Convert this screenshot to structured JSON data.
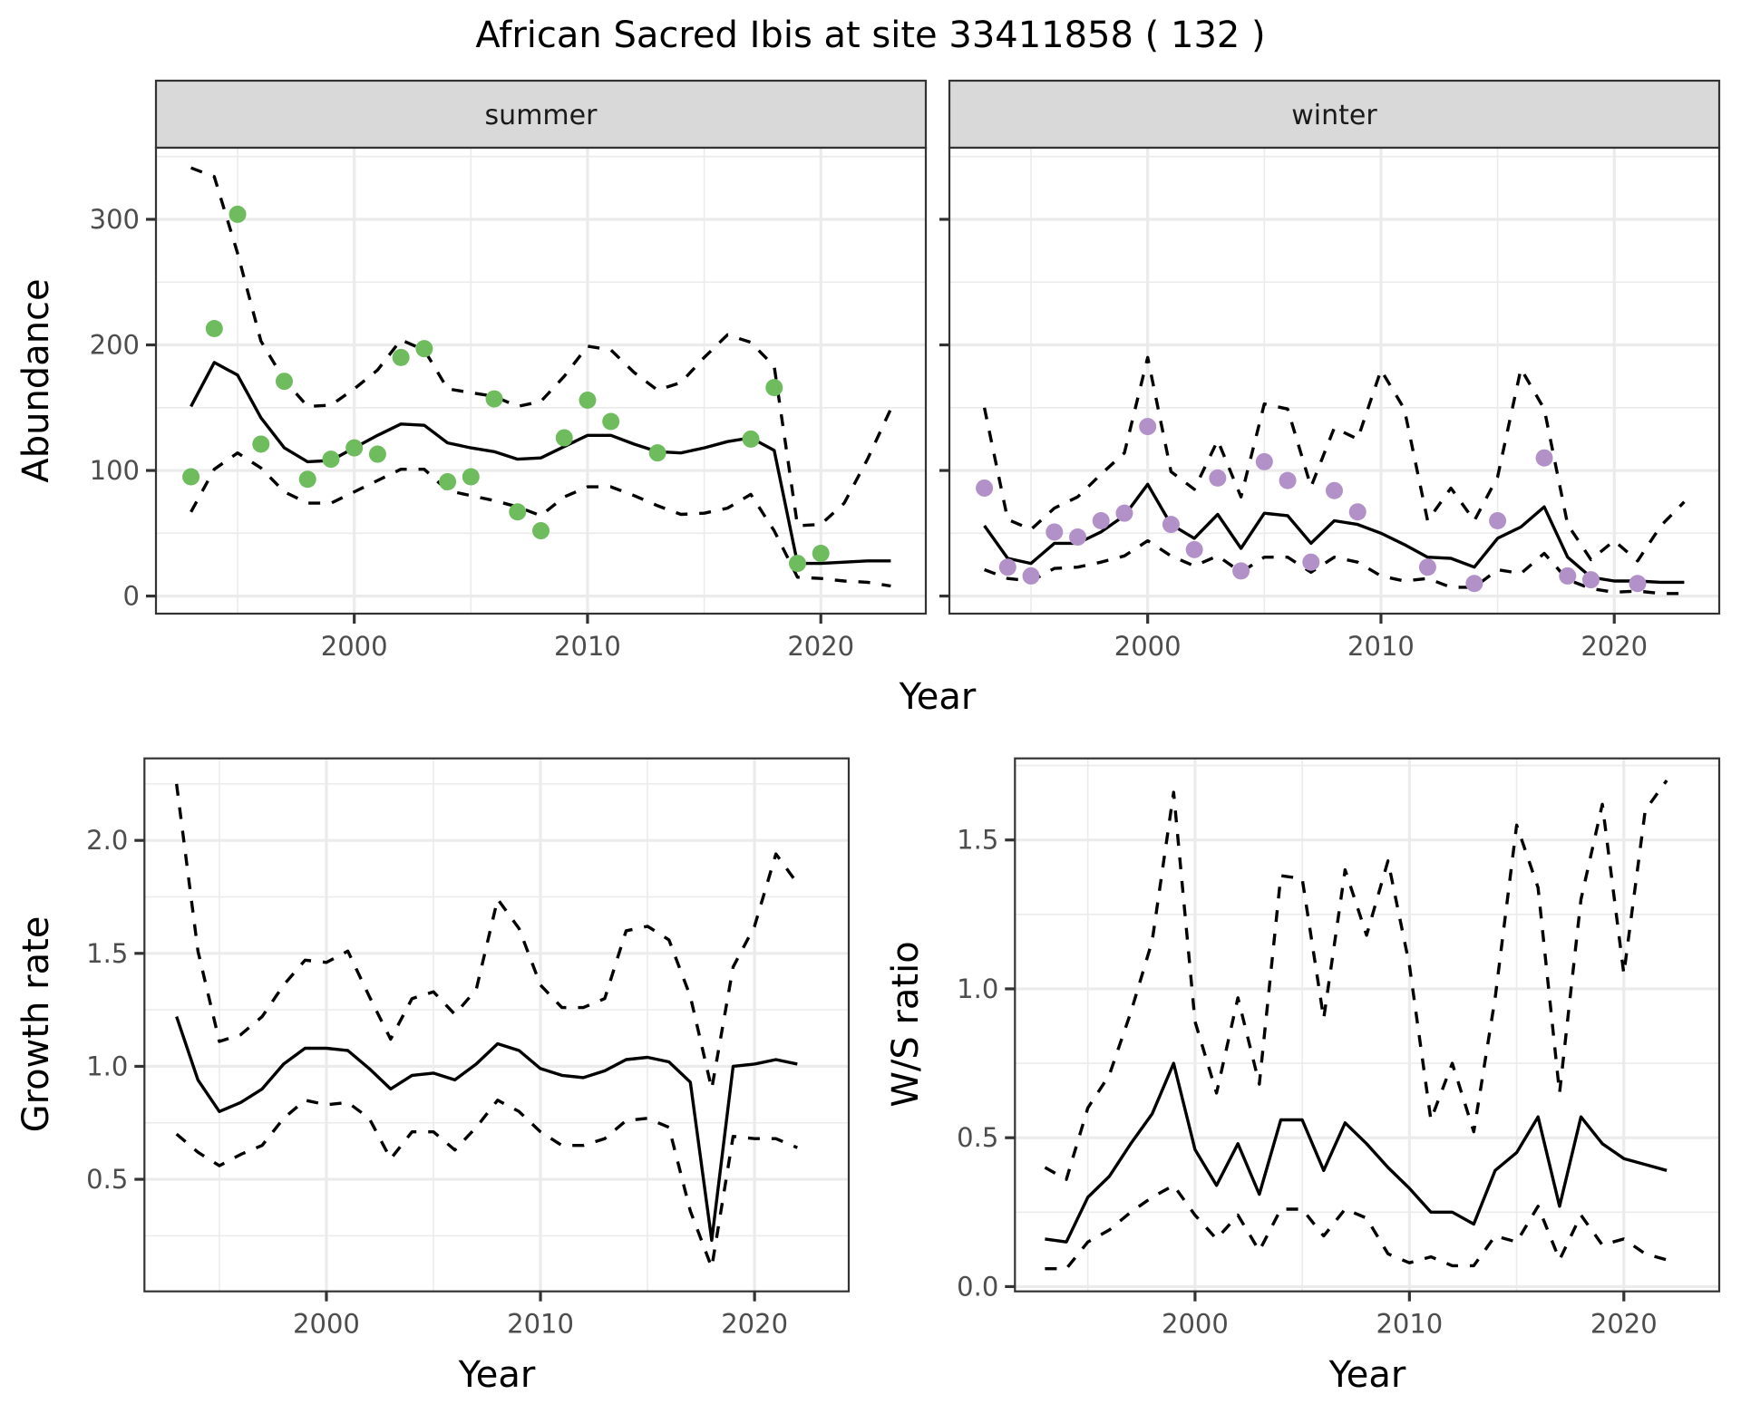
{
  "figure": {
    "title": "African Sacred Ibis at site 33411858 ( 132 )"
  },
  "chart_data": [
    {
      "id": "abundance-summer",
      "type": "line",
      "facet": "summer",
      "title": "",
      "xlabel": "Year",
      "ylabel": "Abundance",
      "xlim": [
        1991.5,
        2024.5
      ],
      "ylim": [
        -14,
        357
      ],
      "xticks": [
        2000,
        2010,
        2020
      ],
      "xtick_labels": [
        "2000",
        "2010",
        "2020"
      ],
      "yticks": [
        0,
        100,
        200,
        300
      ],
      "ytick_labels": [
        "0",
        "100",
        "200",
        "300"
      ],
      "y_minor": [
        50,
        150,
        250,
        350
      ],
      "x_minor": [
        1995,
        2005,
        2015
      ],
      "grid": true,
      "point_color": "#6fbc5f",
      "x": [
        1993,
        1994,
        1995,
        1996,
        1997,
        1998,
        1999,
        2000,
        2001,
        2002,
        2003,
        2004,
        2005,
        2006,
        2007,
        2008,
        2009,
        2010,
        2011,
        2012,
        2013,
        2014,
        2015,
        2016,
        2017,
        2018,
        2019,
        2020,
        2021,
        2022,
        2023
      ],
      "series": [
        {
          "name": "mean",
          "style": "solid",
          "values": [
            151,
            186,
            176,
            142,
            118,
            107,
            108,
            118,
            128,
            137,
            136,
            122,
            118,
            115,
            109,
            110,
            119,
            128,
            128,
            121,
            115,
            114,
            118,
            123,
            126,
            116,
            26,
            26,
            27,
            28,
            28
          ]
        },
        {
          "name": "upper",
          "style": "dashed",
          "values": [
            341,
            334,
            273,
            203,
            172,
            151,
            152,
            165,
            180,
            204,
            196,
            165,
            162,
            159,
            151,
            155,
            175,
            199,
            196,
            178,
            164,
            170,
            190,
            208,
            202,
            183,
            56,
            57,
            74,
            109,
            149
          ]
        },
        {
          "name": "lower",
          "style": "dashed",
          "values": [
            67,
            101,
            114,
            102,
            83,
            74,
            74,
            83,
            92,
            101,
            101,
            84,
            80,
            76,
            71,
            64,
            79,
            87,
            87,
            80,
            72,
            65,
            66,
            70,
            81,
            52,
            15,
            14,
            12,
            11,
            8
          ]
        }
      ],
      "points": {
        "name": "observed",
        "x": [
          1993,
          1994,
          1995,
          1996,
          1997,
          1998,
          1999,
          2000,
          2001,
          2002,
          2003,
          2004,
          2005,
          2006,
          2007,
          2008,
          2009,
          2010,
          2011,
          2013,
          2017,
          2018,
          2019,
          2020
        ],
        "y": [
          95,
          213,
          304,
          121,
          171,
          93,
          109,
          118,
          113,
          190,
          197,
          91,
          95,
          157,
          67,
          52,
          126,
          156,
          139,
          114,
          125,
          166,
          26,
          34
        ]
      }
    },
    {
      "id": "abundance-winter",
      "type": "line",
      "facet": "winter",
      "title": "",
      "xlabel": "Year",
      "ylabel": "Abundance",
      "xlim": [
        1991.5,
        2024.5
      ],
      "ylim": [
        -14,
        357
      ],
      "xticks": [
        2000,
        2010,
        2020
      ],
      "xtick_labels": [
        "2000",
        "2010",
        "2020"
      ],
      "yticks": [
        0,
        100,
        200,
        300
      ],
      "ytick_labels": [],
      "y_minor": [
        50,
        150,
        250,
        350
      ],
      "x_minor": [
        1995,
        2005,
        2015
      ],
      "grid": true,
      "point_color": "#b291c8",
      "x": [
        1993,
        1994,
        1995,
        1996,
        1997,
        1998,
        1999,
        2000,
        2001,
        2002,
        2003,
        2004,
        2005,
        2006,
        2007,
        2008,
        2009,
        2010,
        2011,
        2012,
        2013,
        2014,
        2015,
        2016,
        2017,
        2018,
        2019,
        2020,
        2021,
        2022,
        2023
      ],
      "series": [
        {
          "name": "mean",
          "style": "solid",
          "values": [
            56,
            30,
            26,
            42,
            42,
            51,
            64,
            89,
            57,
            46,
            65,
            38,
            66,
            64,
            42,
            60,
            57,
            50,
            41,
            31,
            30,
            23,
            46,
            55,
            71,
            31,
            15,
            12,
            12,
            11,
            11
          ]
        },
        {
          "name": "upper",
          "style": "dashed",
          "values": [
            150,
            61,
            53,
            70,
            79,
            97,
            114,
            190,
            99,
            85,
            124,
            79,
            153,
            149,
            87,
            134,
            125,
            180,
            149,
            60,
            86,
            60,
            95,
            181,
            149,
            57,
            29,
            44,
            28,
            56,
            75
          ]
        },
        {
          "name": "lower",
          "style": "dashed",
          "values": [
            21,
            14,
            12,
            22,
            23,
            27,
            32,
            44,
            32,
            24,
            32,
            19,
            31,
            31,
            19,
            31,
            27,
            16,
            12,
            14,
            7,
            7,
            21,
            18,
            34,
            13,
            6,
            3,
            4,
            2,
            2
          ]
        }
      ],
      "points": {
        "name": "observed",
        "x": [
          1993,
          1994,
          1995,
          1996,
          1997,
          1998,
          1999,
          2000,
          2001,
          2002,
          2003,
          2004,
          2005,
          2006,
          2007,
          2008,
          2009,
          2012,
          2014,
          2015,
          2017,
          2018,
          2019,
          2021
        ],
        "y": [
          86,
          23,
          16,
          51,
          47,
          60,
          66,
          135,
          57,
          37,
          94,
          20,
          107,
          92,
          27,
          84,
          67,
          23,
          10,
          60,
          110,
          16,
          13,
          10
        ]
      }
    },
    {
      "id": "growth-rate",
      "type": "line",
      "title": "",
      "xlabel": "Year",
      "ylabel": "Growth rate",
      "xlim": [
        1991.5,
        2024.4
      ],
      "ylim": [
        0.004,
        2.363
      ],
      "xticks": [
        2000,
        2010,
        2020
      ],
      "xtick_labels": [
        "2000",
        "2010",
        "2020"
      ],
      "yticks": [
        0.5,
        1.0,
        1.5,
        2.0
      ],
      "ytick_labels": [
        "0.5",
        "1.0",
        "1.5",
        "2.0"
      ],
      "y_minor": [
        0.25,
        0.75,
        1.25,
        1.75,
        2.25
      ],
      "x_minor": [
        1995,
        2005,
        2015
      ],
      "grid": true,
      "x": [
        1993,
        1994,
        1995,
        1996,
        1997,
        1998,
        1999,
        2000,
        2001,
        2002,
        2003,
        2004,
        2005,
        2006,
        2007,
        2008,
        2009,
        2010,
        2011,
        2012,
        2013,
        2014,
        2015,
        2016,
        2017,
        2018,
        2019,
        2020,
        2021,
        2022
      ],
      "series": [
        {
          "name": "mean",
          "style": "solid",
          "values": [
            1.22,
            0.94,
            0.8,
            0.84,
            0.9,
            1.01,
            1.08,
            1.08,
            1.07,
            0.99,
            0.9,
            0.96,
            0.97,
            0.94,
            1.01,
            1.1,
            1.07,
            0.99,
            0.96,
            0.95,
            0.98,
            1.03,
            1.04,
            1.02,
            0.93,
            0.23,
            1.0,
            1.01,
            1.03,
            1.01
          ]
        },
        {
          "name": "upper",
          "style": "dashed",
          "values": [
            2.25,
            1.51,
            1.11,
            1.14,
            1.22,
            1.36,
            1.47,
            1.46,
            1.51,
            1.31,
            1.12,
            1.3,
            1.33,
            1.23,
            1.34,
            1.74,
            1.61,
            1.36,
            1.26,
            1.26,
            1.3,
            1.6,
            1.62,
            1.56,
            1.31,
            0.9,
            1.44,
            1.62,
            1.94,
            1.81
          ]
        },
        {
          "name": "lower",
          "style": "dashed",
          "values": [
            0.7,
            0.62,
            0.56,
            0.61,
            0.65,
            0.77,
            0.85,
            0.83,
            0.84,
            0.77,
            0.59,
            0.71,
            0.71,
            0.63,
            0.73,
            0.85,
            0.8,
            0.71,
            0.65,
            0.65,
            0.68,
            0.76,
            0.77,
            0.73,
            0.36,
            0.11,
            0.69,
            0.68,
            0.68,
            0.64
          ]
        }
      ]
    },
    {
      "id": "ws-ratio",
      "type": "line",
      "title": "",
      "xlabel": "Year",
      "ylabel": "W/S ratio",
      "xlim": [
        1991.6,
        2024.45
      ],
      "ylim": [
        -0.016,
        1.774
      ],
      "xticks": [
        2000,
        2010,
        2020
      ],
      "xtick_labels": [
        "2000",
        "2010",
        "2020"
      ],
      "yticks": [
        0.0,
        0.5,
        1.0,
        1.5
      ],
      "ytick_labels": [
        "0.0",
        "0.5",
        "1.0",
        "1.5"
      ],
      "y_minor": [
        0.25,
        0.75,
        1.25,
        1.75
      ],
      "x_minor": [
        1995,
        2005,
        2015
      ],
      "grid": true,
      "x": [
        1993,
        1994,
        1995,
        1996,
        1997,
        1998,
        1999,
        2000,
        2001,
        2002,
        2003,
        2004,
        2005,
        2006,
        2007,
        2008,
        2009,
        2010,
        2011,
        2012,
        2013,
        2014,
        2015,
        2016,
        2017,
        2018,
        2019,
        2020,
        2021,
        2022
      ],
      "series": [
        {
          "name": "mean",
          "style": "solid",
          "values": [
            0.16,
            0.15,
            0.3,
            0.37,
            0.48,
            0.58,
            0.75,
            0.46,
            0.34,
            0.48,
            0.31,
            0.56,
            0.56,
            0.39,
            0.55,
            0.48,
            0.4,
            0.33,
            0.25,
            0.25,
            0.21,
            0.39,
            0.45,
            0.57,
            0.27,
            0.57,
            0.48,
            0.43,
            0.41,
            0.39
          ]
        },
        {
          "name": "upper",
          "style": "dashed",
          "values": [
            0.4,
            0.36,
            0.6,
            0.71,
            0.92,
            1.16,
            1.66,
            0.89,
            0.65,
            0.97,
            0.68,
            1.38,
            1.37,
            0.9,
            1.4,
            1.18,
            1.43,
            1.08,
            0.56,
            0.75,
            0.52,
            0.97,
            1.55,
            1.34,
            0.65,
            1.3,
            1.62,
            1.05,
            1.6,
            1.7
          ]
        },
        {
          "name": "lower",
          "style": "dashed",
          "values": [
            0.06,
            0.06,
            0.15,
            0.19,
            0.25,
            0.3,
            0.34,
            0.24,
            0.16,
            0.24,
            0.12,
            0.26,
            0.26,
            0.17,
            0.26,
            0.23,
            0.11,
            0.08,
            0.1,
            0.07,
            0.07,
            0.17,
            0.15,
            0.27,
            0.09,
            0.24,
            0.14,
            0.16,
            0.11,
            0.09
          ]
        }
      ]
    }
  ]
}
